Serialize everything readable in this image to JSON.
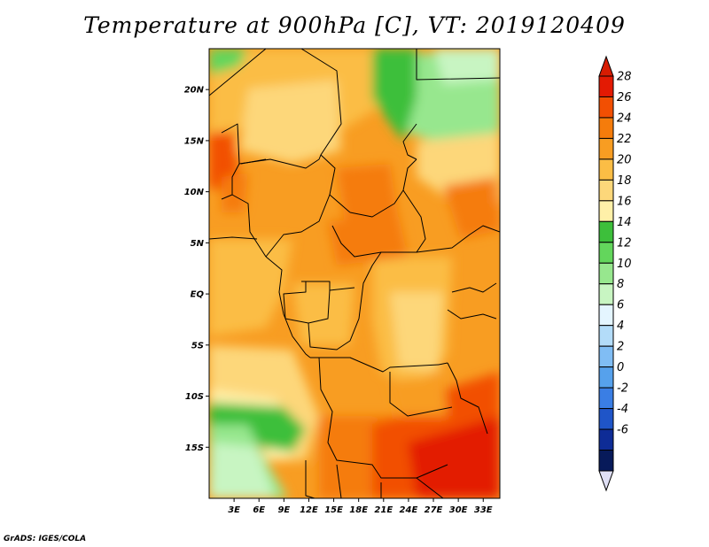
{
  "title": "Temperature at 900hPa [C], VT: 2019120409",
  "credit": "GrADS: IGES/COLA",
  "map": {
    "lat_range": [
      -20,
      24
    ],
    "lon_range": [
      0,
      35
    ],
    "lat_ticks": [
      {
        "label": "20N",
        "value": 20
      },
      {
        "label": "15N",
        "value": 15
      },
      {
        "label": "10N",
        "value": 10
      },
      {
        "label": "5N",
        "value": 5
      },
      {
        "label": "EQ",
        "value": 0
      },
      {
        "label": "5S",
        "value": -5
      },
      {
        "label": "10S",
        "value": -10
      },
      {
        "label": "15S",
        "value": -15
      }
    ],
    "lon_ticks": [
      {
        "label": "3E",
        "value": 3
      },
      {
        "label": "6E",
        "value": 6
      },
      {
        "label": "9E",
        "value": 9
      },
      {
        "label": "12E",
        "value": 12
      },
      {
        "label": "15E",
        "value": 15
      },
      {
        "label": "18E",
        "value": 18
      },
      {
        "label": "21E",
        "value": 21
      },
      {
        "label": "24E",
        "value": 24
      },
      {
        "label": "27E",
        "value": 27
      },
      {
        "label": "30E",
        "value": 30
      },
      {
        "label": "33E",
        "value": 33
      }
    ]
  },
  "colorbar": {
    "levels": [
      "28",
      "26",
      "24",
      "22",
      "20",
      "18",
      "16",
      "14",
      "12",
      "10",
      "8",
      "6",
      "4",
      "2",
      "0",
      "-2",
      "-4",
      "-6"
    ],
    "colors": [
      "#e31a03",
      "#f24f02",
      "#f57c0b",
      "#f89d22",
      "#fbbd45",
      "#fdd77a",
      "#fff0a8",
      "#3dbf3b",
      "#63d65c",
      "#97e78e",
      "#c8f5c2",
      "#e4f5ff",
      "#b3dcf9",
      "#80bdf4",
      "#56a1ec",
      "#3a7ee4",
      "#1f55c8",
      "#0e2c96",
      "#071a5a"
    ],
    "top_color": "#d71c02",
    "bottom_color": "#e0e0f5"
  }
}
